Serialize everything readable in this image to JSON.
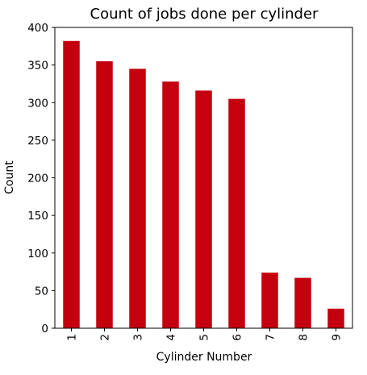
{
  "chart_data": {
    "type": "bar",
    "title": "Count of jobs done per cylinder",
    "xlabel": "Cylinder Number",
    "ylabel": "Count",
    "categories": [
      "1",
      "2",
      "3",
      "4",
      "5",
      "6",
      "7",
      "8",
      "9"
    ],
    "values": [
      382,
      355,
      345,
      328,
      316,
      305,
      74,
      67,
      26
    ],
    "ylim": [
      0,
      400
    ],
    "yticks": [
      0,
      50,
      100,
      150,
      200,
      250,
      300,
      350,
      400
    ],
    "bar_color": "#c4000e",
    "grid": false,
    "legend": "none",
    "x_tick_rotation": "vertical"
  }
}
